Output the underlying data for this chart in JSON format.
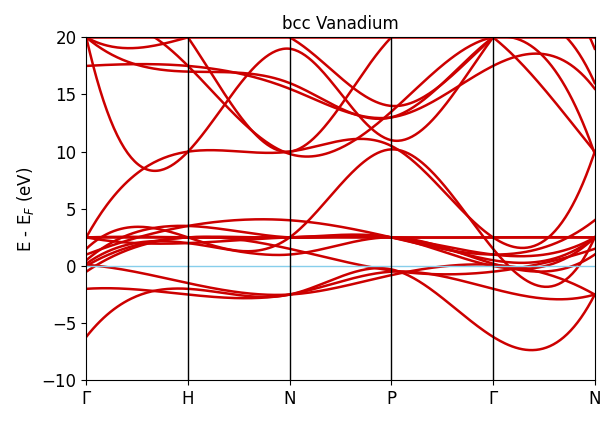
{
  "title": "bcc Vanadium",
  "ylabel": "E - E$_F$ (eV)",
  "ylim": [
    -10,
    20
  ],
  "yticks": [
    -10,
    -5,
    0,
    5,
    10,
    15,
    20
  ],
  "kpoints": [
    "Γ",
    "H",
    "N",
    "P",
    "Γ",
    "N"
  ],
  "kpoint_positions": [
    0,
    1,
    2,
    3,
    4,
    5
  ],
  "line_color": "#cc0000",
  "fermi_color": "#87ceeb",
  "fermi_lw": 1.0,
  "line_lw": 1.8,
  "background_color": "#ffffff",
  "title_fontsize": 12,
  "label_fontsize": 12,
  "tick_fontsize": 12
}
